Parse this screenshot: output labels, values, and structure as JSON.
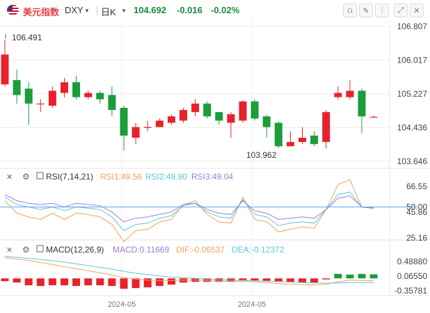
{
  "header": {
    "symbol_name": "美元指数",
    "symbol_code": "DXY",
    "period": "日K",
    "price": "104.692",
    "change": "-0.016",
    "change_pct": "-0.02%",
    "change_color": "#1a8a3c",
    "toolbar_icons": [
      "chart-type-icon",
      "draw-icon",
      "indicator-icon",
      "fullscreen-icon",
      "close-icon"
    ]
  },
  "colors": {
    "up": "#e8222a",
    "down": "#1a9d3a",
    "grid": "#eeeeee",
    "rsi_ref": "#5aa6e8"
  },
  "chart_data": [
    {
      "type": "candlestick",
      "y_axis_labels": [
        "106.807",
        "106.017",
        "105.227",
        "104.436",
        "103.646"
      ],
      "y_axis_values": [
        106.807,
        106.017,
        105.227,
        104.436,
        103.646
      ],
      "ylim": [
        103.646,
        106.807
      ],
      "x_tick_labels": [
        "2024-05",
        "2024-05"
      ],
      "high_label": "106.491",
      "low_label": "103.962",
      "candles": [
        {
          "o": 105.45,
          "c": 106.15,
          "h": 106.49,
          "l": 105.4
        },
        {
          "o": 105.55,
          "c": 105.2,
          "h": 105.8,
          "l": 105.0
        },
        {
          "o": 105.35,
          "c": 105.0,
          "h": 105.5,
          "l": 104.5
        },
        {
          "o": 105.0,
          "c": 105.0,
          "h": 105.1,
          "l": 104.8
        },
        {
          "o": 104.95,
          "c": 105.3,
          "h": 105.4,
          "l": 104.9
        },
        {
          "o": 105.25,
          "c": 105.5,
          "h": 105.6,
          "l": 105.15
        },
        {
          "o": 105.5,
          "c": 105.15,
          "h": 105.65,
          "l": 105.1
        },
        {
          "o": 105.15,
          "c": 105.25,
          "h": 105.3,
          "l": 105.1
        },
        {
          "o": 105.25,
          "c": 105.1,
          "h": 105.3,
          "l": 105.0
        },
        {
          "o": 105.2,
          "c": 104.85,
          "h": 105.4,
          "l": 104.7
        },
        {
          "o": 104.9,
          "c": 104.25,
          "h": 104.95,
          "l": 103.9
        },
        {
          "o": 104.2,
          "c": 104.45,
          "h": 104.55,
          "l": 104.05
        },
        {
          "o": 104.45,
          "c": 104.45,
          "h": 104.6,
          "l": 104.35
        },
        {
          "o": 104.45,
          "c": 104.6,
          "h": 104.65,
          "l": 104.45
        },
        {
          "o": 104.55,
          "c": 104.7,
          "h": 104.75,
          "l": 104.5
        },
        {
          "o": 104.6,
          "c": 104.85,
          "h": 104.9,
          "l": 104.55
        },
        {
          "o": 104.8,
          "c": 105.0,
          "h": 105.1,
          "l": 104.7
        },
        {
          "o": 105.0,
          "c": 104.7,
          "h": 105.05,
          "l": 104.65
        },
        {
          "o": 104.8,
          "c": 104.6,
          "h": 104.8,
          "l": 104.5
        },
        {
          "o": 104.55,
          "c": 104.75,
          "h": 104.8,
          "l": 104.2
        },
        {
          "o": 104.6,
          "c": 105.05,
          "h": 105.08,
          "l": 104.55
        },
        {
          "o": 105.05,
          "c": 104.65,
          "h": 105.1,
          "l": 104.6
        },
        {
          "o": 104.7,
          "c": 104.45,
          "h": 104.75,
          "l": 104.2
        },
        {
          "o": 104.55,
          "c": 104.0,
          "h": 104.58,
          "l": 103.96
        },
        {
          "o": 104.0,
          "c": 104.1,
          "h": 104.35,
          "l": 104.0
        },
        {
          "o": 104.1,
          "c": 104.2,
          "h": 104.45,
          "l": 104.05
        },
        {
          "o": 104.25,
          "c": 104.05,
          "h": 104.35,
          "l": 104.0
        },
        {
          "o": 104.1,
          "c": 104.8,
          "h": 104.85,
          "l": 103.95
        },
        {
          "o": 105.15,
          "c": 105.25,
          "h": 105.4,
          "l": 105.1
        },
        {
          "o": 105.15,
          "c": 105.3,
          "h": 105.55,
          "l": 105.1
        },
        {
          "o": 105.3,
          "c": 104.7,
          "h": 105.35,
          "l": 104.3
        },
        {
          "o": 104.69,
          "c": 104.69,
          "h": 104.72,
          "l": 104.67
        }
      ]
    },
    {
      "type": "line",
      "name": "RSI(7,14,21)",
      "y_axis_labels": [
        "66.55",
        "50.00",
        "45.86",
        "25.16"
      ],
      "y_axis_values": [
        66.55,
        50.0,
        45.86,
        25.16
      ],
      "ylim": [
        25.16,
        66.55
      ],
      "reference_value": 50.0,
      "series": [
        {
          "name": "RSI1:49.56",
          "color": "#f0a25a",
          "values": [
            55,
            45,
            42,
            40,
            45,
            40,
            45,
            44,
            42,
            36,
            22,
            31,
            32,
            38,
            40,
            52,
            55,
            44,
            38,
            37,
            58,
            40,
            38,
            30,
            32,
            34,
            33,
            48,
            68,
            72,
            50,
            49.56
          ]
        },
        {
          "name": "RSI2:48.80",
          "color": "#5ac8d8",
          "values": [
            58,
            52,
            50,
            48,
            50,
            47,
            50,
            49,
            48,
            42,
            31,
            36,
            37,
            41,
            43,
            51,
            53,
            46,
            42,
            41,
            56,
            44,
            42,
            35,
            37,
            38,
            37,
            48,
            60,
            62,
            50,
            48.8
          ]
        },
        {
          "name": "RSI3:49.04",
          "color": "#9b7fd6",
          "values": [
            60,
            55,
            53,
            52,
            53,
            50,
            53,
            52,
            51,
            46,
            38,
            41,
            42,
            44,
            46,
            52,
            53,
            48,
            45,
            44,
            55,
            47,
            45,
            40,
            41,
            42,
            41,
            48,
            57,
            59,
            50,
            49.04
          ]
        }
      ]
    },
    {
      "type": "bar+line",
      "name": "MACD(12,26,9)",
      "macd_label": "MACD:0.11669",
      "dif_label": "DIF:-0.06537",
      "dea_label": "DEA:-0.12372",
      "macd_color": "#9b7fd6",
      "dif_color": "#f0a25a",
      "dea_color": "#5ac8d8",
      "y_axis_labels": [
        "0.48880",
        "0.06550",
        "-0.35781"
      ],
      "y_axis_values": [
        0.4888,
        0.0655,
        -0.35781
      ],
      "ylim": [
        -0.35781,
        0.4888
      ],
      "histogram": [
        -0.08,
        -0.12,
        -0.2,
        -0.22,
        -0.2,
        -0.2,
        -0.22,
        -0.2,
        -0.2,
        -0.22,
        -0.3,
        -0.28,
        -0.26,
        -0.22,
        -0.18,
        -0.12,
        -0.1,
        -0.1,
        -0.1,
        -0.1,
        -0.05,
        -0.06,
        -0.07,
        -0.1,
        -0.1,
        -0.12,
        -0.12,
        -0.03,
        0.13,
        0.11,
        0.13,
        0.117
      ],
      "dif": [
        0.6,
        0.56,
        0.52,
        0.46,
        0.4,
        0.34,
        0.28,
        0.22,
        0.16,
        0.1,
        0.02,
        -0.02,
        -0.05,
        -0.06,
        -0.06,
        -0.05,
        -0.05,
        -0.06,
        -0.08,
        -0.09,
        -0.08,
        -0.1,
        -0.12,
        -0.15,
        -0.17,
        -0.18,
        -0.19,
        -0.17,
        -0.1,
        -0.05,
        -0.06,
        -0.065
      ],
      "dea": [
        0.64,
        0.61,
        0.58,
        0.55,
        0.51,
        0.47,
        0.42,
        0.37,
        0.32,
        0.27,
        0.2,
        0.15,
        0.11,
        0.07,
        0.04,
        0.02,
        0.0,
        -0.02,
        -0.04,
        -0.05,
        -0.06,
        -0.07,
        -0.08,
        -0.09,
        -0.11,
        -0.12,
        -0.13,
        -0.14,
        -0.13,
        -0.12,
        -0.12,
        -0.124
      ]
    }
  ]
}
